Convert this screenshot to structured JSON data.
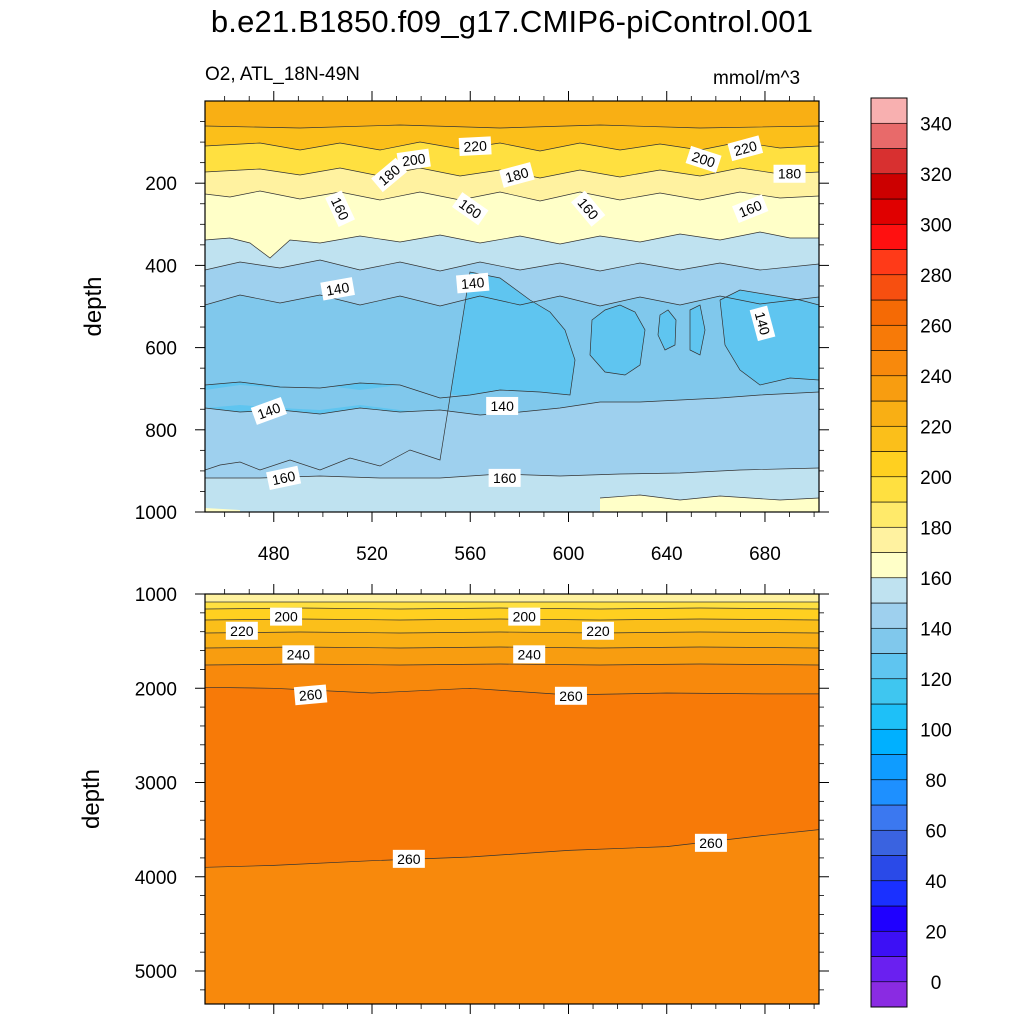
{
  "title": "b.e21.B1850.f09_g17.CMIP6-piControl.001",
  "left_string": "O2, ATL_18N-49N",
  "right_string": "mmol/m^3",
  "colors": {
    "frame": "#000000",
    "contour_line": "#333333"
  },
  "chart_data": [
    {
      "type": "heatmap",
      "panel": "upper",
      "variable": "O2",
      "region": "ATL_18N-49N",
      "units": "mmol/m^3",
      "xlabel": "",
      "ylabel": "depth",
      "xlim": [
        452,
        702
      ],
      "ylim": [
        1000,
        0
      ],
      "x_ticks": [
        "480",
        "520",
        "560",
        "600",
        "640",
        "680"
      ],
      "x_tick_values": [
        480,
        520,
        560,
        600,
        640,
        680
      ],
      "y_ticks": [
        "200",
        "400",
        "600",
        "800",
        "1000"
      ],
      "y_tick_values": [
        200,
        400,
        600,
        800,
        1000
      ],
      "contour_labels": [
        {
          "text": "220",
          "x": 562,
          "y": 110,
          "angle": -3
        },
        {
          "text": "220",
          "x": 672,
          "y": 115,
          "angle": -15
        },
        {
          "text": "200",
          "x": 537,
          "y": 143,
          "angle": -8
        },
        {
          "text": "200",
          "x": 655,
          "y": 142,
          "angle": 18
        },
        {
          "text": "180",
          "x": 527,
          "y": 180,
          "angle": -40
        },
        {
          "text": "180",
          "x": 579,
          "y": 180,
          "angle": -15
        },
        {
          "text": "180",
          "x": 690,
          "y": 177,
          "angle": 0
        },
        {
          "text": "160",
          "x": 507,
          "y": 262,
          "angle": 65
        },
        {
          "text": "160",
          "x": 560,
          "y": 262,
          "angle": 35
        },
        {
          "text": "160",
          "x": 608,
          "y": 262,
          "angle": 50
        },
        {
          "text": "160",
          "x": 674,
          "y": 262,
          "angle": -22
        },
        {
          "text": "140",
          "x": 506,
          "y": 457,
          "angle": -10
        },
        {
          "text": "140",
          "x": 561,
          "y": 443,
          "angle": -5
        },
        {
          "text": "140",
          "x": 679,
          "y": 541,
          "angle": 75
        },
        {
          "text": "140",
          "x": 478,
          "y": 754,
          "angle": -20
        },
        {
          "text": "140",
          "x": 573,
          "y": 742,
          "angle": 0
        },
        {
          "text": "160",
          "x": 484,
          "y": 917,
          "angle": -12
        },
        {
          "text": "160",
          "x": 574,
          "y": 917,
          "angle": 0
        }
      ]
    },
    {
      "type": "heatmap",
      "panel": "lower",
      "variable": "O2",
      "region": "ATL_18N-49N",
      "units": "mmol/m^3",
      "xlabel": "",
      "ylabel": "depth",
      "xlim": [
        452,
        702
      ],
      "ylim": [
        5350,
        1000
      ],
      "y_ticks": [
        "1000",
        "2000",
        "3000",
        "4000",
        "5000"
      ],
      "y_tick_values": [
        1000,
        2000,
        3000,
        4000,
        5000
      ],
      "contour_labels": [
        {
          "text": "200",
          "x": 485,
          "y": 1240,
          "angle": 0
        },
        {
          "text": "220",
          "x": 467,
          "y": 1390,
          "angle": 0
        },
        {
          "text": "200",
          "x": 582,
          "y": 1240,
          "angle": 0
        },
        {
          "text": "220",
          "x": 612,
          "y": 1390,
          "angle": 0
        },
        {
          "text": "240",
          "x": 490,
          "y": 1640,
          "angle": 0
        },
        {
          "text": "240",
          "x": 584,
          "y": 1640,
          "angle": 0
        },
        {
          "text": "260",
          "x": 495,
          "y": 2070,
          "angle": -5
        },
        {
          "text": "260",
          "x": 601,
          "y": 2080,
          "angle": 0
        },
        {
          "text": "260",
          "x": 535,
          "y": 3810,
          "angle": 0
        },
        {
          "text": "260",
          "x": 658,
          "y": 3640,
          "angle": 0
        }
      ],
      "isolines": [
        {
          "value": 260,
          "x": [
            452,
            480,
            520,
            560,
            600,
            640,
            680,
            702
          ],
          "y": [
            1990,
            2000,
            2050,
            2000,
            2070,
            2050,
            2060,
            2060
          ]
        },
        {
          "value": 260,
          "x": [
            452,
            480,
            520,
            560,
            600,
            640,
            680,
            702
          ],
          "y": [
            3900,
            3880,
            3830,
            3790,
            3720,
            3680,
            3560,
            3500
          ]
        }
      ]
    }
  ],
  "colorbar": {
    "labels": [
      "0",
      "20",
      "40",
      "60",
      "80",
      "100",
      "120",
      "140",
      "160",
      "180",
      "200",
      "220",
      "240",
      "260",
      "280",
      "300",
      "320",
      "340"
    ],
    "colors": [
      "#8a2be2",
      "#6a20f0",
      "#3d10f5",
      "#1f00ff",
      "#1a30ff",
      "#2a4ae8",
      "#3a63e0",
      "#3b78f0",
      "#1e90ff",
      "#0f9cff",
      "#00b0ff",
      "#1ec0f8",
      "#3fc6f0",
      "#5fc5f0",
      "#80c8ec",
      "#9ed0ee",
      "#bfe2f0",
      "#ffffc8",
      "#fff2a0",
      "#ffea6a",
      "#ffe040",
      "#ffd020",
      "#fbbf1a",
      "#f9af14",
      "#f89d10",
      "#f8890c",
      "#f77a08",
      "#f56a05",
      "#f74f10",
      "#ff3a18",
      "#ff1010",
      "#e00000",
      "#cc0000",
      "#d83030",
      "#e86a6a",
      "#f8b0b0"
    ]
  }
}
